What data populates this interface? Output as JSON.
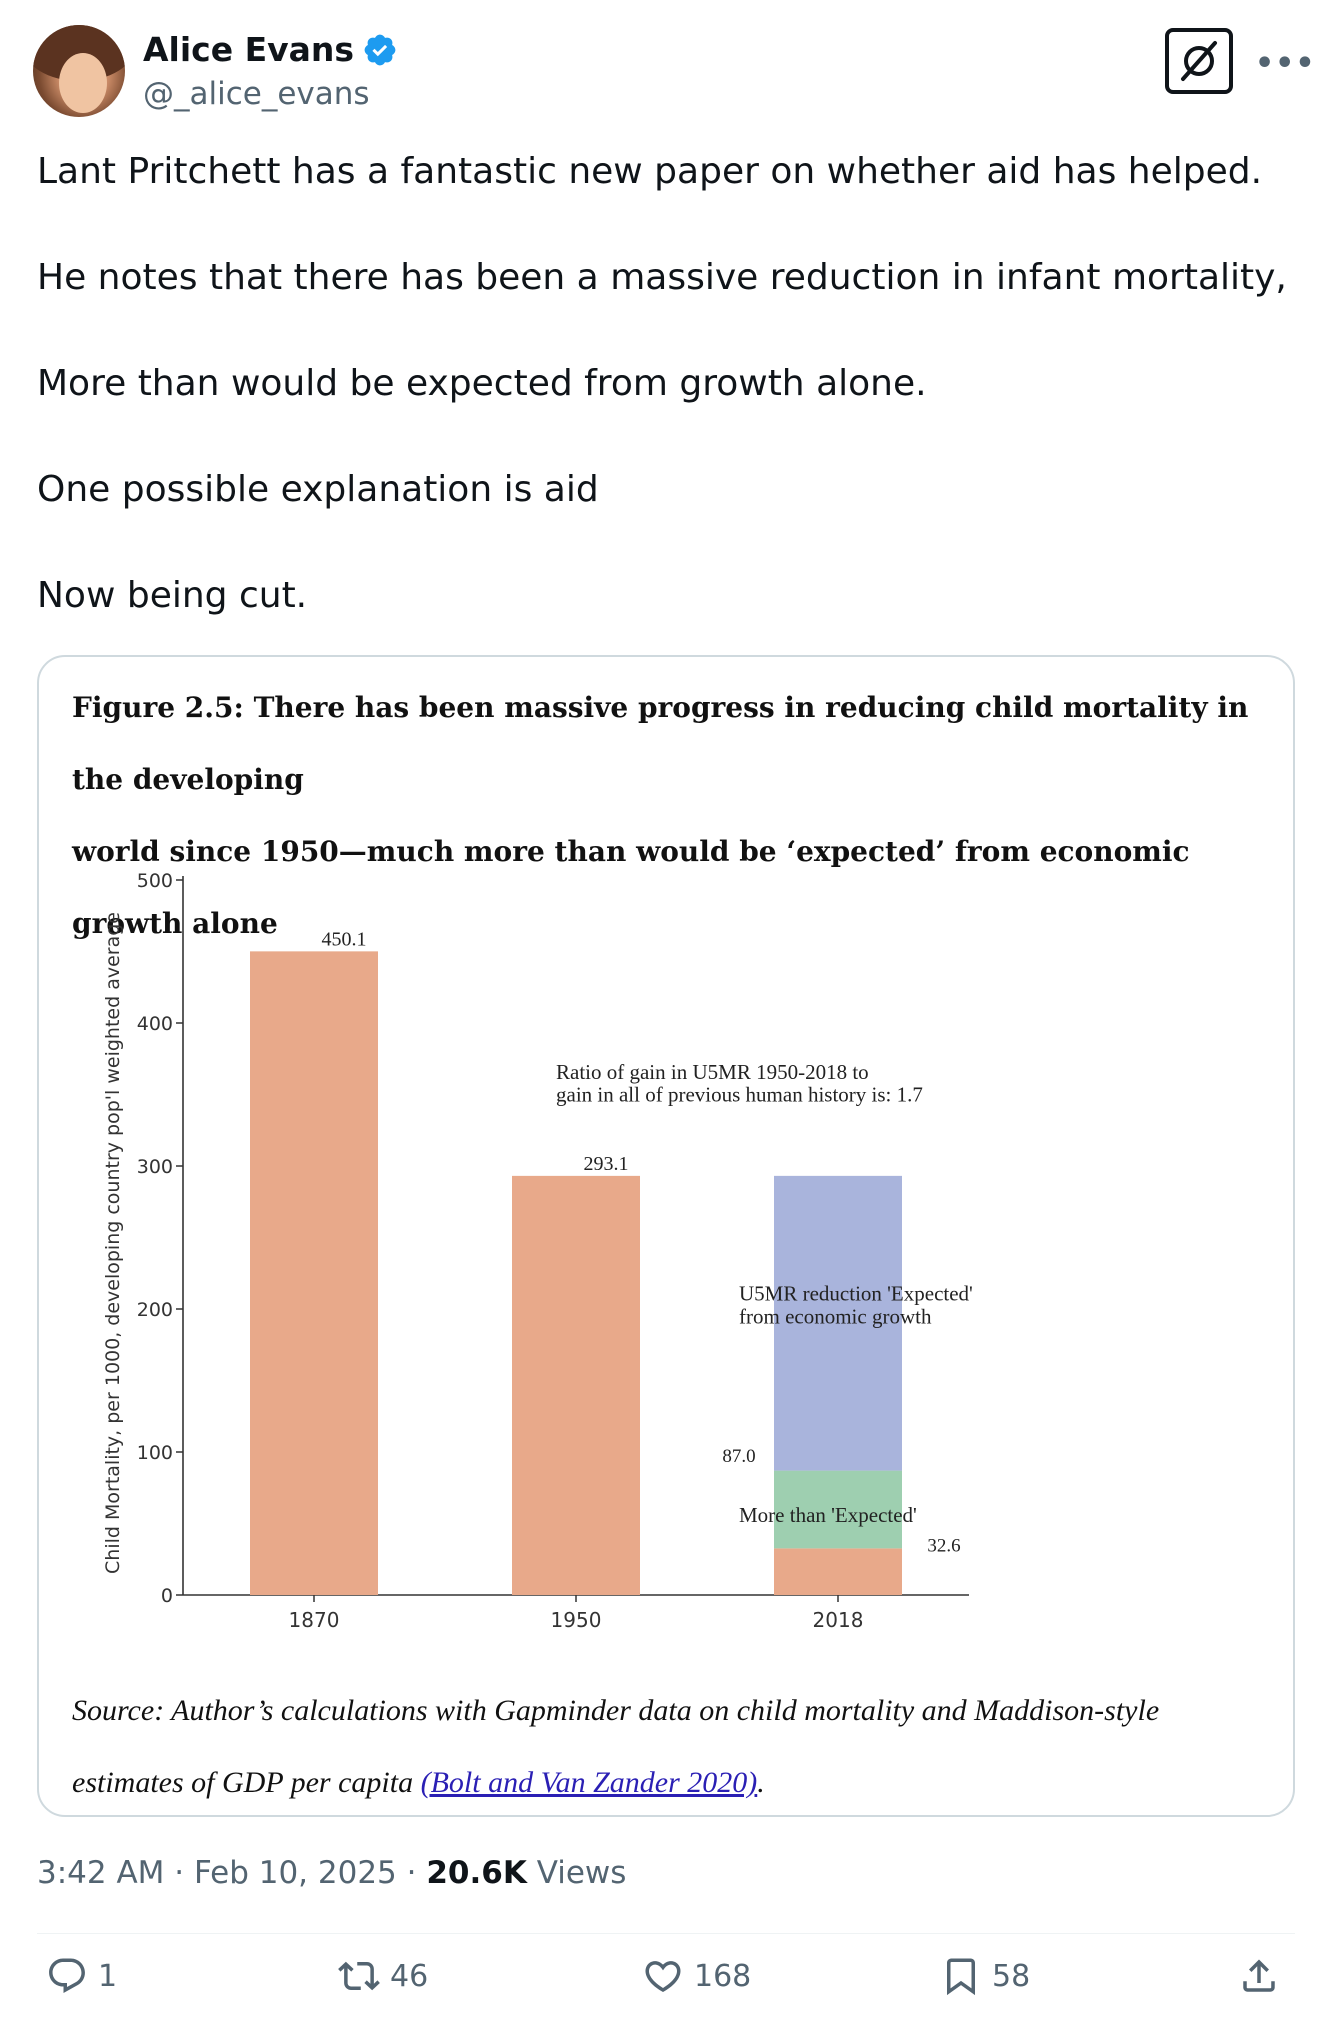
{
  "author": {
    "display_name": "Alice Evans",
    "handle": "@_alice_evans",
    "verified_color": "#1d9bf0"
  },
  "tweet": {
    "paragraphs": [
      "Lant Pritchett has a fantastic new paper on whether aid has helped.",
      "He notes that there has been a massive reduction in infant mortality,",
      "More than would be expected from growth alone.",
      "One possible explanation is aid",
      "Now being cut."
    ]
  },
  "figure": {
    "title_line1": "Figure 2.5:  There has been massive progress in reducing child mortality in the developing",
    "title_line2": "world since 1950—much more than would be ‘expected’ from economic growth alone",
    "source_line1": "Source:  Author’s calculations with Gapminder data on child mortality and Maddison-style",
    "source_line2_prefix": "estimates of GDP per capita ",
    "source_link": "(Bolt and Van Zander 2020)",
    "source_suffix": "."
  },
  "chart_data": {
    "type": "bar",
    "ylabel": "Child Mortality, per 1000, developing country pop'l weighted average",
    "xlabel": "",
    "ylim": [
      0,
      500
    ],
    "yticks": [
      0,
      100,
      200,
      300,
      400,
      500
    ],
    "categories": [
      "1870",
      "1950",
      "2018"
    ],
    "bars": [
      {
        "category": "1870",
        "segments": [
          {
            "name": "",
            "value": 450.1,
            "color": "#e8a98a"
          }
        ],
        "label": "450.1"
      },
      {
        "category": "1950",
        "segments": [
          {
            "name": "",
            "value": 293.1,
            "color": "#e8a98a"
          }
        ],
        "label": "293.1"
      },
      {
        "category": "2018",
        "segments": [
          {
            "name": "",
            "value": 32.6,
            "color": "#e8a98a"
          },
          {
            "name": "More than 'Expected'",
            "value": 54.4,
            "color": "#9ecfb0"
          },
          {
            "name": "U5MR reduction 'Expected' from economic growth",
            "value": 206.1,
            "color": "#a9b4dc"
          }
        ]
      }
    ],
    "annotations": [
      {
        "text_line1": "Ratio of gain in U5MR 1950-2018 to",
        "text_line2": "gain in all of previous human history is: 1.7"
      },
      {
        "text": "87.0"
      },
      {
        "text": "32.6"
      },
      {
        "text_line1": "U5MR reduction 'Expected'",
        "text_line2": "from economic growth"
      },
      {
        "text": "More than 'Expected'"
      }
    ],
    "grid": false
  },
  "meta": {
    "time": "3:42 AM",
    "sep1": " · ",
    "date": "Feb 10, 2025",
    "sep2": " · ",
    "views_count": "20.6K",
    "views_label": " Views"
  },
  "actions": {
    "replies": "1",
    "retweets": "46",
    "likes": "168",
    "bookmarks": "58"
  }
}
